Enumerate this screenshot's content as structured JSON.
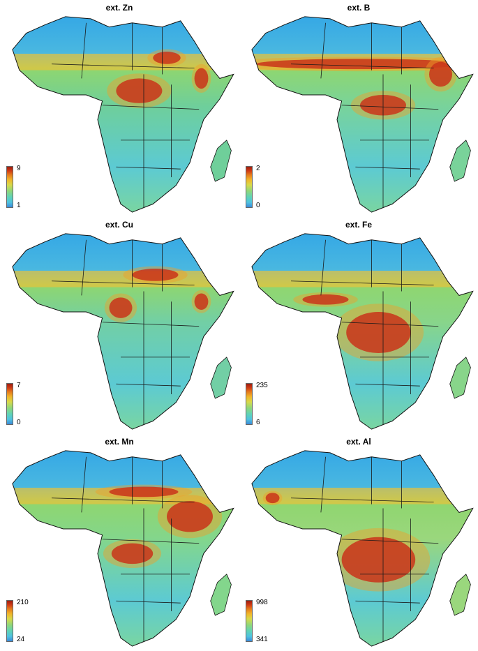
{
  "panels": [
    {
      "title": "ext. Zn",
      "legend": {
        "max": "9",
        "min": "1"
      },
      "hot": [
        [
          0.7,
          0.22,
          0.12,
          0.06
        ],
        [
          0.58,
          0.38,
          0.2,
          0.12
        ],
        [
          0.85,
          0.32,
          0.06,
          0.1
        ]
      ],
      "base": "#6fcf9a"
    },
    {
      "title": "ext. B",
      "legend": {
        "max": "2",
        "min": "0"
      },
      "hot": [
        [
          0.5,
          0.25,
          0.9,
          0.05
        ],
        [
          0.85,
          0.3,
          0.1,
          0.12
        ],
        [
          0.6,
          0.45,
          0.2,
          0.1
        ]
      ],
      "base": "#79d39a"
    },
    {
      "title": "ext. Cu",
      "legend": {
        "max": "7",
        "min": "0"
      },
      "hot": [
        [
          0.65,
          0.22,
          0.2,
          0.06
        ],
        [
          0.5,
          0.38,
          0.1,
          0.1
        ],
        [
          0.85,
          0.35,
          0.06,
          0.08
        ]
      ],
      "base": "#72cfa5"
    },
    {
      "title": "ext. Fe",
      "legend": {
        "max": "235",
        "min": "6"
      },
      "hot": [
        [
          0.58,
          0.5,
          0.28,
          0.2
        ],
        [
          0.35,
          0.34,
          0.2,
          0.05
        ],
        [
          0.9,
          0.72,
          0.04,
          0.12
        ]
      ],
      "base": "#88d58a"
    },
    {
      "title": "ext. Mn",
      "legend": {
        "max": "210",
        "min": "24"
      },
      "hot": [
        [
          0.8,
          0.34,
          0.2,
          0.15
        ],
        [
          0.6,
          0.22,
          0.3,
          0.05
        ],
        [
          0.55,
          0.52,
          0.18,
          0.1
        ]
      ],
      "base": "#83d68c"
    },
    {
      "title": "ext. Al",
      "legend": {
        "max": "998",
        "min": "341"
      },
      "hot": [
        [
          0.58,
          0.55,
          0.32,
          0.22
        ],
        [
          0.12,
          0.25,
          0.06,
          0.05
        ],
        [
          0.85,
          0.78,
          0.05,
          0.1
        ]
      ],
      "base": "#9ad77d"
    }
  ]
}
